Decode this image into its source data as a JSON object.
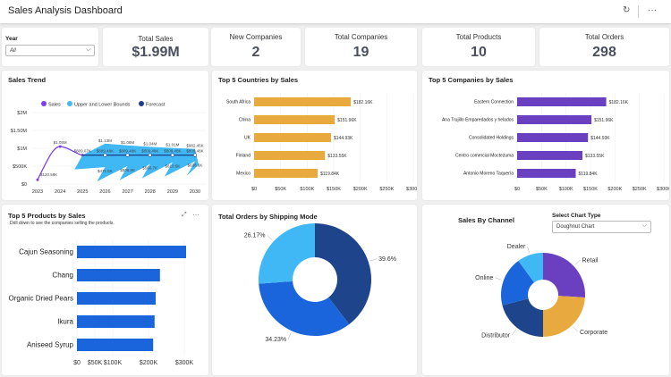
{
  "header": {
    "title": "Sales Analysis Dashboard",
    "refresh_icon": "refresh-icon",
    "more_icon": "more-icon"
  },
  "filter": {
    "label": "Year",
    "value": "All"
  },
  "kpis": [
    {
      "label": "Total Sales",
      "value": "$1.99M"
    },
    {
      "label": "New Companies",
      "value": "2"
    },
    {
      "label": "Total Companies",
      "value": "19"
    },
    {
      "label": "Total Products",
      "value": "10"
    },
    {
      "label": "Total Orders",
      "value": "298"
    }
  ],
  "colors": {
    "sales": "#7b3fe4",
    "bounds": "#3fb8f5",
    "forecast": "#1e3f8c",
    "countries": "#e8a93f",
    "companies": "#6a3fc0",
    "products": "#1a64dc"
  },
  "chart_data": [
    {
      "type": "line",
      "title": "Sales Trend",
      "legend": [
        "Sales",
        "Upper and Lower Bounds",
        "Forecast"
      ],
      "legend_position": "top",
      "x": [
        "2023",
        "2024",
        "2025",
        "2026",
        "2027",
        "2028",
        "2029",
        "2030"
      ],
      "yticks": [
        "$0",
        "$500K",
        "$1M",
        "$1.50M",
        "$2M"
      ],
      "ylim": [
        0,
        2000000
      ],
      "series": [
        {
          "name": "Sales",
          "values": [
            120000,
            1050000,
            809000,
            null,
            null,
            null,
            null,
            null
          ],
          "labels": [
            "$120.58K",
            "$1.05M",
            "$809.07K",
            "",
            "",
            "",
            "",
            ""
          ]
        },
        {
          "name": "Forecast",
          "values": [
            null,
            null,
            809000,
            809000,
            809000,
            809000,
            809000,
            809000
          ],
          "labels": [
            "",
            "",
            "",
            "$809.48K",
            "$809.48K",
            "$809.48K",
            "$809.48K",
            "$809.48K"
          ]
        },
        {
          "name": "Upper and Lower Bounds",
          "upper": [
            null,
            null,
            809000,
            1130000,
            1080000,
            1040000,
            1010000,
            982000
          ],
          "lower": [
            null,
            null,
            809000,
            471000,
            506000,
            560000,
            610000,
            636000
          ],
          "upper_labels": [
            "",
            "",
            "",
            "$1.13M",
            "$1.08M",
            "$1.04M",
            "$1.01M",
            "$982.45K"
          ],
          "lower_labels": [
            "",
            "",
            "",
            "$471.5K",
            "$506.5K",
            "$560.7K",
            "$610.5K",
            "$636.6K"
          ]
        }
      ]
    },
    {
      "type": "bar",
      "title": "Top 5 Countries by Sales",
      "categories": [
        "South Africa",
        "China",
        "UK",
        "Finland",
        "Mexico"
      ],
      "values": [
        182160,
        151960,
        144930,
        133550,
        119840
      ],
      "labels": [
        "$182.16K",
        "$151.96K",
        "$144.93K",
        "$133.55K",
        "$119.84K"
      ],
      "xticks": [
        "$0",
        "$50K",
        "$100K",
        "$150K",
        "$200K",
        "$250K",
        "$300K"
      ],
      "xlim": [
        0,
        300000
      ]
    },
    {
      "type": "bar",
      "title": "Top 5 Companies by Sales",
      "categories": [
        "Eastern Connection",
        "Ana Trujillo Emparedados y helados",
        "Consolidated Holdings",
        "Centro comercial Moctezuma",
        "Antonio Moreno Taquería"
      ],
      "values": [
        182160,
        151960,
        144930,
        133550,
        119840
      ],
      "labels": [
        "$182.16K",
        "$151.96K",
        "$144.93K",
        "$133.55K",
        "$119.84K"
      ],
      "xticks": [
        "$0",
        "$50K",
        "$100K",
        "$150K",
        "$200K",
        "$250K",
        "$300K"
      ],
      "xlim": [
        0,
        300000
      ]
    },
    {
      "type": "bar",
      "title": "Top 5 Products by Sales",
      "subtitle": "Drill down to see the companies selling the products.",
      "categories": [
        "Cajun Seasoning",
        "Chang",
        "Organic Dried Pears",
        "Ikura",
        "Aniseed Syrup"
      ],
      "values": [
        305000,
        232000,
        220000,
        217000,
        213000
      ],
      "xticks": [
        "$0",
        "$50K",
        "$100K",
        "$200K",
        "$300K"
      ],
      "xtick_values": [
        0,
        50000,
        100000,
        200000,
        300000
      ],
      "xlim": [
        0,
        350000
      ]
    },
    {
      "type": "pie",
      "title": "Total Orders by Shipping Mode",
      "values": [
        39.6,
        34.23,
        26.17
      ],
      "labels": [
        "39.6%",
        "34.23%",
        "26.17%"
      ],
      "colors": [
        "#1e448c",
        "#1a64dc",
        "#3fb8f5"
      ]
    },
    {
      "type": "pie",
      "title": "Sales By Channel",
      "select_label": "Select Chart Type",
      "select_value": "Doughnut Chart",
      "categories": [
        "Retail",
        "Corporate",
        "Distributor",
        "Online",
        "Dealer"
      ],
      "values": [
        26,
        24,
        21,
        19,
        10
      ],
      "colors": [
        "#6a3fc0",
        "#e8a93f",
        "#1e448c",
        "#1a64dc",
        "#3fb8f5"
      ]
    }
  ]
}
